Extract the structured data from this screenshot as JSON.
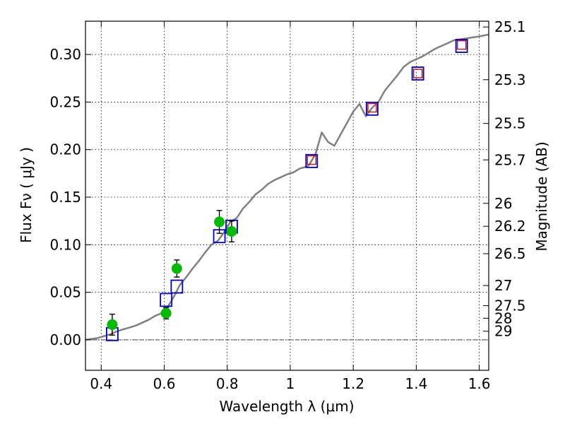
{
  "chart_data": {
    "type": "scatter",
    "xlabel": "Wavelength  λ (μm)",
    "ylabel": "Flux  Fν ( μJy )",
    "y2label": "Magnitude (AB)",
    "xlim": [
      0.35,
      1.63
    ],
    "ylim": [
      -0.032,
      0.335
    ],
    "grid": true,
    "x_ticks": [
      {
        "value": 0.4,
        "label": "0.4"
      },
      {
        "value": 0.6,
        "label": "0.6"
      },
      {
        "value": 0.8,
        "label": "0.8"
      },
      {
        "value": 1.0,
        "label": "1"
      },
      {
        "value": 1.2,
        "label": "1.2"
      },
      {
        "value": 1.4,
        "label": "1.4"
      },
      {
        "value": 1.6,
        "label": "1.6"
      }
    ],
    "y_ticks": [
      {
        "value": 0.0,
        "label": "0.00"
      },
      {
        "value": 0.05,
        "label": "0.05"
      },
      {
        "value": 0.1,
        "label": "0.10"
      },
      {
        "value": 0.15,
        "label": "0.15"
      },
      {
        "value": 0.2,
        "label": "0.20"
      },
      {
        "value": 0.25,
        "label": "0.25"
      },
      {
        "value": 0.3,
        "label": "0.30"
      }
    ],
    "y2_ticks": [
      {
        "label": "25.1",
        "flux": 0.3289
      },
      {
        "label": "25.3",
        "flux": 0.2735
      },
      {
        "label": "25.5",
        "flux": 0.2275
      },
      {
        "label": "25.7",
        "flux": 0.1892
      },
      {
        "label": "26",
        "flux": 0.1435
      },
      {
        "label": "26.2",
        "flux": 0.1194
      },
      {
        "label": "26.5",
        "flux": 0.0906
      },
      {
        "label": "27",
        "flux": 0.0571
      },
      {
        "label": "27.5",
        "flux": 0.036
      },
      {
        "label": "28",
        "flux": 0.0227
      },
      {
        "label": "29",
        "flux": 0.0091
      }
    ],
    "model_spectrum": {
      "color": "#808080",
      "x": [
        0.35,
        0.37,
        0.39,
        0.41,
        0.43,
        0.45,
        0.47,
        0.49,
        0.51,
        0.53,
        0.55,
        0.57,
        0.59,
        0.61,
        0.63,
        0.65,
        0.67,
        0.69,
        0.71,
        0.73,
        0.75,
        0.77,
        0.79,
        0.81,
        0.83,
        0.85,
        0.87,
        0.89,
        0.91,
        0.93,
        0.95,
        0.97,
        0.99,
        1.01,
        1.03,
        1.05,
        1.06,
        1.08,
        1.1,
        1.12,
        1.14,
        1.16,
        1.18,
        1.2,
        1.22,
        1.24,
        1.26,
        1.28,
        1.3,
        1.32,
        1.34,
        1.36,
        1.38,
        1.4,
        1.42,
        1.44,
        1.46,
        1.48,
        1.5,
        1.52,
        1.54,
        1.56,
        1.58,
        1.6,
        1.63
      ],
      "y": [
        0.0,
        0.001,
        0.002,
        0.004,
        0.006,
        0.009,
        0.011,
        0.013,
        0.015,
        0.018,
        0.021,
        0.025,
        0.028,
        0.034,
        0.045,
        0.058,
        0.066,
        0.075,
        0.083,
        0.092,
        0.1,
        0.104,
        0.113,
        0.124,
        0.128,
        0.138,
        0.145,
        0.153,
        0.158,
        0.164,
        0.168,
        0.171,
        0.174,
        0.176,
        0.18,
        0.182,
        0.184,
        0.195,
        0.218,
        0.208,
        0.204,
        0.216,
        0.228,
        0.24,
        0.248,
        0.235,
        0.244,
        0.25,
        0.262,
        0.27,
        0.278,
        0.287,
        0.292,
        0.295,
        0.298,
        0.302,
        0.306,
        0.309,
        0.312,
        0.315,
        0.316,
        0.317,
        0.318,
        0.319,
        0.321
      ]
    },
    "observed_points": {
      "color": "#00bb00",
      "points": [
        {
          "x": 0.435,
          "y": 0.016,
          "err": 0.011
        },
        {
          "x": 0.606,
          "y": 0.028,
          "err": 0.006
        },
        {
          "x": 0.64,
          "y": 0.075,
          "err": 0.009
        },
        {
          "x": 0.775,
          "y": 0.124,
          "err": 0.012
        },
        {
          "x": 0.814,
          "y": 0.114,
          "err": 0.011
        }
      ]
    },
    "model_photometry": {
      "color": "#0000cc",
      "points": [
        {
          "x": 0.435,
          "y": 0.006
        },
        {
          "x": 0.606,
          "y": 0.042
        },
        {
          "x": 0.64,
          "y": 0.056
        },
        {
          "x": 0.775,
          "y": 0.109
        },
        {
          "x": 0.814,
          "y": 0.119
        },
        {
          "x": 1.068,
          "y": 0.188
        },
        {
          "x": 1.26,
          "y": 0.243
        },
        {
          "x": 1.405,
          "y": 0.28
        },
        {
          "x": 1.544,
          "y": 0.309
        }
      ]
    },
    "nir_points": {
      "color": "#dd0000",
      "points": [
        {
          "x": 1.068,
          "y": 0.189
        },
        {
          "x": 1.26,
          "y": 0.244
        },
        {
          "x": 1.405,
          "y": 0.28
        },
        {
          "x": 1.544,
          "y": 0.31
        }
      ]
    }
  }
}
